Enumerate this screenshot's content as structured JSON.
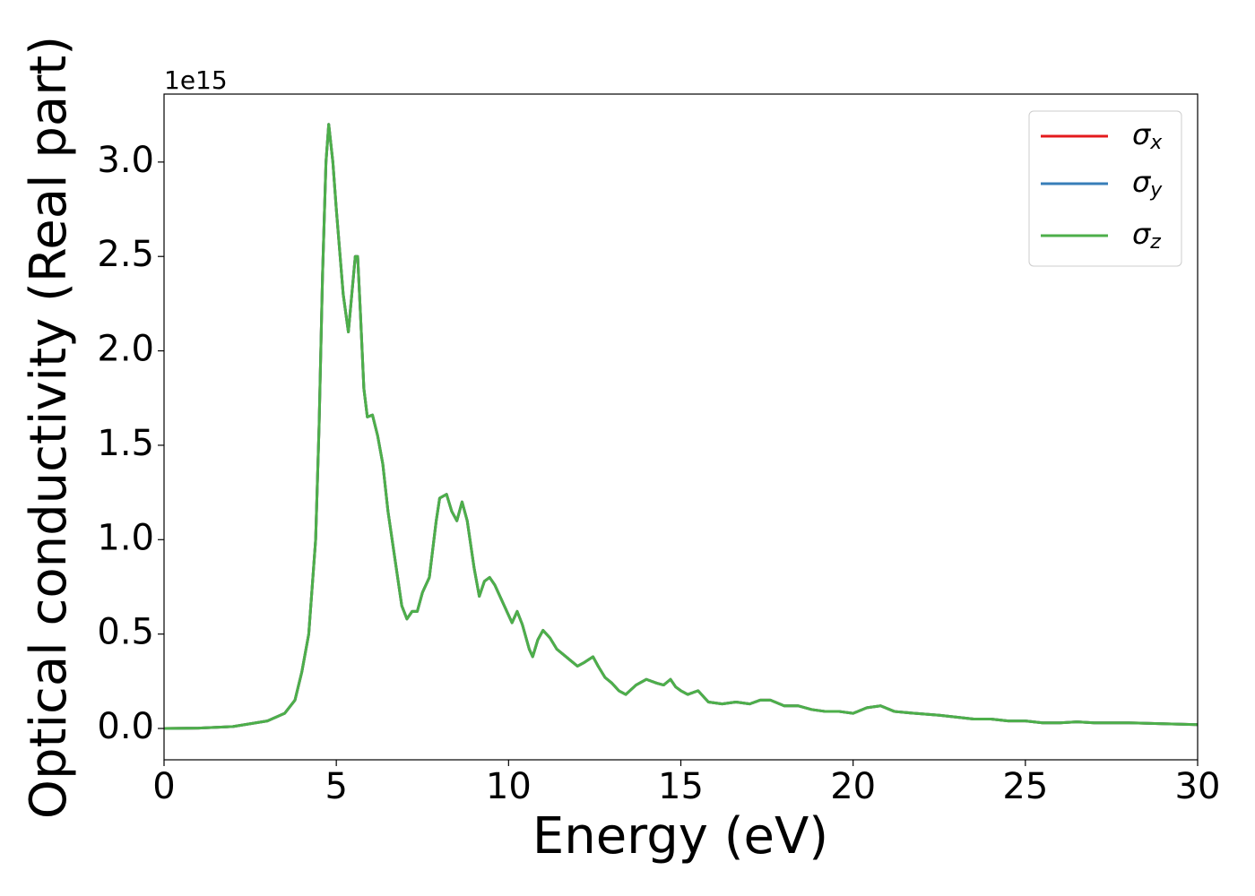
{
  "chart_data": {
    "type": "line",
    "xlabel": "Energy (eV)",
    "ylabel": "Optical conductivity (Real part)",
    "y_offset_label": "1e15",
    "xlim": [
      0,
      30
    ],
    "ylim": [
      -0.166,
      3.36
    ],
    "xticks": [
      0,
      5,
      10,
      15,
      20,
      25,
      30
    ],
    "yticks": [
      {
        "value": 0,
        "label": "0.0"
      },
      {
        "value": 0.5,
        "label": "0.5"
      },
      {
        "value": 1,
        "label": "1.0"
      },
      {
        "value": 1.5,
        "label": "1.5"
      },
      {
        "value": 2,
        "label": "2.0"
      },
      {
        "value": 2.5,
        "label": "2.5"
      },
      {
        "value": 3,
        "label": "3.0"
      }
    ],
    "legend": "upper right",
    "x": [
      0,
      1,
      2,
      3,
      3.5,
      3.8,
      4.0,
      4.2,
      4.4,
      4.5,
      4.6,
      4.7,
      4.78,
      4.9,
      5.0,
      5.2,
      5.35,
      5.45,
      5.55,
      5.62,
      5.7,
      5.8,
      5.9,
      6.05,
      6.2,
      6.35,
      6.5,
      6.7,
      6.9,
      7.05,
      7.2,
      7.35,
      7.5,
      7.7,
      7.9,
      8.0,
      8.2,
      8.35,
      8.5,
      8.65,
      8.8,
      9.0,
      9.15,
      9.3,
      9.45,
      9.6,
      9.8,
      10.0,
      10.1,
      10.25,
      10.4,
      10.6,
      10.7,
      10.85,
      11.0,
      11.2,
      11.4,
      11.6,
      11.8,
      12.0,
      12.2,
      12.45,
      12.6,
      12.8,
      13.0,
      13.2,
      13.4,
      13.7,
      14.0,
      14.3,
      14.5,
      14.7,
      14.85,
      15.0,
      15.2,
      15.5,
      15.8,
      16.2,
      16.6,
      17.0,
      17.3,
      17.6,
      18.0,
      18.4,
      18.8,
      19.2,
      19.6,
      20.0,
      20.4,
      20.8,
      21.2,
      21.8,
      22.5,
      23.0,
      23.5,
      24.0,
      24.5,
      25.0,
      25.5,
      26.0,
      26.5,
      27.0,
      28.0,
      29.0,
      30.0
    ],
    "series": [
      {
        "name": "σx",
        "color": "#e41a1c",
        "values": [
          0,
          0.002,
          0.01,
          0.04,
          0.08,
          0.15,
          0.3,
          0.5,
          1.0,
          1.6,
          2.4,
          3.0,
          3.2,
          3.0,
          2.75,
          2.3,
          2.1,
          2.3,
          2.5,
          2.5,
          2.2,
          1.8,
          1.65,
          1.66,
          1.55,
          1.4,
          1.15,
          0.9,
          0.65,
          0.58,
          0.62,
          0.62,
          0.72,
          0.8,
          1.1,
          1.22,
          1.24,
          1.15,
          1.1,
          1.2,
          1.1,
          0.85,
          0.7,
          0.78,
          0.8,
          0.76,
          0.68,
          0.6,
          0.56,
          0.62,
          0.55,
          0.42,
          0.38,
          0.47,
          0.52,
          0.48,
          0.42,
          0.39,
          0.36,
          0.33,
          0.35,
          0.38,
          0.33,
          0.27,
          0.24,
          0.2,
          0.18,
          0.23,
          0.26,
          0.24,
          0.23,
          0.26,
          0.22,
          0.2,
          0.18,
          0.2,
          0.14,
          0.13,
          0.14,
          0.13,
          0.15,
          0.15,
          0.12,
          0.12,
          0.1,
          0.09,
          0.09,
          0.08,
          0.11,
          0.12,
          0.09,
          0.08,
          0.07,
          0.06,
          0.05,
          0.05,
          0.04,
          0.04,
          0.03,
          0.03,
          0.035,
          0.03,
          0.03,
          0.025,
          0.02
        ]
      },
      {
        "name": "σy",
        "color": "#377eb8",
        "values": [
          0,
          0.002,
          0.01,
          0.04,
          0.08,
          0.15,
          0.3,
          0.5,
          1.0,
          1.6,
          2.4,
          3.0,
          3.2,
          3.0,
          2.75,
          2.3,
          2.1,
          2.3,
          2.5,
          2.5,
          2.2,
          1.8,
          1.65,
          1.66,
          1.55,
          1.4,
          1.15,
          0.9,
          0.65,
          0.58,
          0.62,
          0.62,
          0.72,
          0.8,
          1.1,
          1.22,
          1.24,
          1.15,
          1.1,
          1.2,
          1.1,
          0.85,
          0.7,
          0.78,
          0.8,
          0.76,
          0.68,
          0.6,
          0.56,
          0.62,
          0.55,
          0.42,
          0.38,
          0.47,
          0.52,
          0.48,
          0.42,
          0.39,
          0.36,
          0.33,
          0.35,
          0.38,
          0.33,
          0.27,
          0.24,
          0.2,
          0.18,
          0.23,
          0.26,
          0.24,
          0.23,
          0.26,
          0.22,
          0.2,
          0.18,
          0.2,
          0.14,
          0.13,
          0.14,
          0.13,
          0.15,
          0.15,
          0.12,
          0.12,
          0.1,
          0.09,
          0.09,
          0.08,
          0.11,
          0.12,
          0.09,
          0.08,
          0.07,
          0.06,
          0.05,
          0.05,
          0.04,
          0.04,
          0.03,
          0.03,
          0.035,
          0.03,
          0.03,
          0.025,
          0.02
        ]
      },
      {
        "name": "σz",
        "color": "#4daf4a",
        "values": [
          0,
          0.002,
          0.01,
          0.04,
          0.08,
          0.15,
          0.3,
          0.5,
          1.0,
          1.6,
          2.4,
          3.0,
          3.2,
          3.0,
          2.75,
          2.3,
          2.1,
          2.3,
          2.5,
          2.5,
          2.2,
          1.8,
          1.65,
          1.66,
          1.55,
          1.4,
          1.15,
          0.9,
          0.65,
          0.58,
          0.62,
          0.62,
          0.72,
          0.8,
          1.1,
          1.22,
          1.24,
          1.15,
          1.1,
          1.2,
          1.1,
          0.85,
          0.7,
          0.78,
          0.8,
          0.76,
          0.68,
          0.6,
          0.56,
          0.62,
          0.55,
          0.42,
          0.38,
          0.47,
          0.52,
          0.48,
          0.42,
          0.39,
          0.36,
          0.33,
          0.35,
          0.38,
          0.33,
          0.27,
          0.24,
          0.2,
          0.18,
          0.23,
          0.26,
          0.24,
          0.23,
          0.26,
          0.22,
          0.2,
          0.18,
          0.2,
          0.14,
          0.13,
          0.14,
          0.13,
          0.15,
          0.15,
          0.12,
          0.12,
          0.1,
          0.09,
          0.09,
          0.08,
          0.11,
          0.12,
          0.09,
          0.08,
          0.07,
          0.06,
          0.05,
          0.05,
          0.04,
          0.04,
          0.03,
          0.03,
          0.035,
          0.03,
          0.03,
          0.025,
          0.02
        ]
      }
    ]
  }
}
